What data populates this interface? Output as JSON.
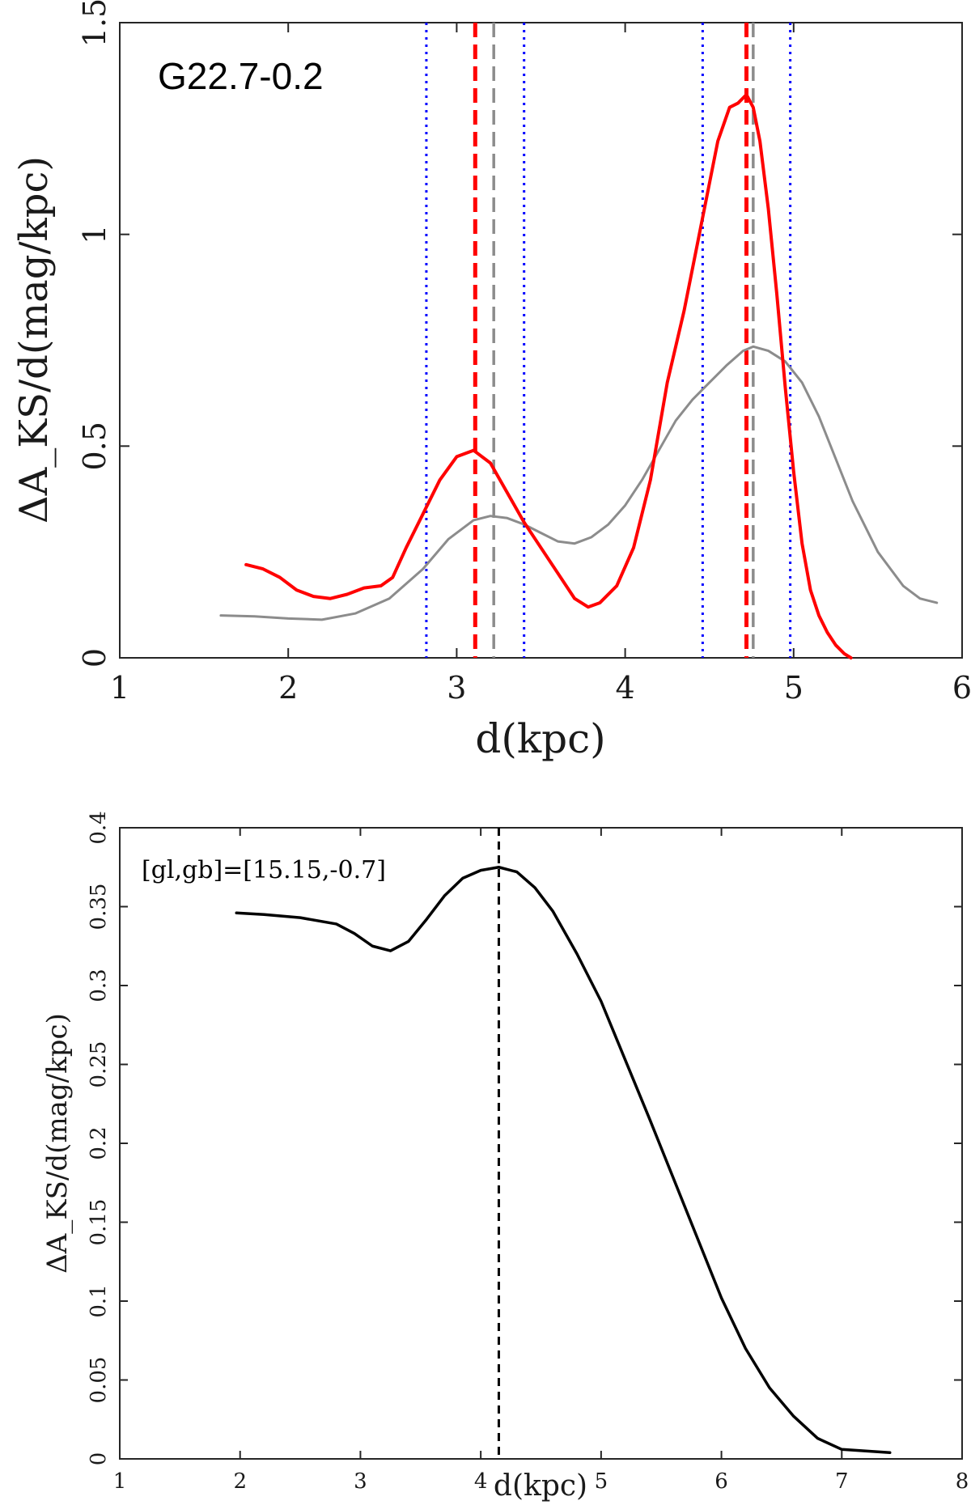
{
  "chart_data": [
    {
      "type": "line",
      "title": "",
      "annotation": "G22.7-0.2",
      "xlabel": "d(kpc)",
      "ylabel": "ΔA_KS/d(mag/kpc)",
      "xlim": [
        1,
        6
      ],
      "ylim": [
        0,
        1.5
      ],
      "xticks": [
        1,
        2,
        3,
        4,
        5,
        6
      ],
      "xtick_labels": [
        "1",
        "2",
        "3",
        "4",
        "5",
        "6"
      ],
      "yticks": [
        0,
        0.5,
        1,
        1.5
      ],
      "ytick_labels": [
        "0",
        "0.5",
        "1",
        "1.5"
      ],
      "grid": false,
      "series": [
        {
          "name": "red",
          "color": "#ff0000",
          "x": [
            1.75,
            1.85,
            1.95,
            2.05,
            2.15,
            2.25,
            2.35,
            2.45,
            2.55,
            2.62,
            2.7,
            2.8,
            2.9,
            3.0,
            3.1,
            3.2,
            3.3,
            3.4,
            3.5,
            3.6,
            3.7,
            3.78,
            3.85,
            3.95,
            4.05,
            4.15,
            4.25,
            4.35,
            4.45,
            4.55,
            4.62,
            4.67,
            4.72,
            4.76,
            4.8,
            4.85,
            4.9,
            4.95,
            5.0,
            5.05,
            5.1,
            5.15,
            5.2,
            5.25,
            5.3,
            5.34
          ],
          "y": [
            0.22,
            0.21,
            0.19,
            0.16,
            0.145,
            0.14,
            0.15,
            0.165,
            0.17,
            0.19,
            0.26,
            0.34,
            0.42,
            0.475,
            0.49,
            0.46,
            0.39,
            0.32,
            0.26,
            0.2,
            0.14,
            0.12,
            0.13,
            0.17,
            0.26,
            0.42,
            0.65,
            0.82,
            1.02,
            1.22,
            1.3,
            1.31,
            1.33,
            1.3,
            1.22,
            1.06,
            0.86,
            0.64,
            0.44,
            0.27,
            0.16,
            0.1,
            0.06,
            0.03,
            0.01,
            0.0
          ]
        },
        {
          "name": "gray",
          "color": "#8c8c8c",
          "x": [
            1.6,
            1.8,
            2.0,
            2.2,
            2.4,
            2.6,
            2.8,
            2.95,
            3.1,
            3.2,
            3.3,
            3.4,
            3.5,
            3.6,
            3.7,
            3.8,
            3.9,
            4.0,
            4.1,
            4.2,
            4.3,
            4.4,
            4.5,
            4.6,
            4.7,
            4.76,
            4.85,
            4.95,
            5.05,
            5.15,
            5.25,
            5.35,
            5.5,
            5.65,
            5.75,
            5.85
          ],
          "y": [
            0.1,
            0.098,
            0.093,
            0.09,
            0.105,
            0.14,
            0.21,
            0.28,
            0.325,
            0.335,
            0.33,
            0.315,
            0.295,
            0.275,
            0.27,
            0.285,
            0.315,
            0.36,
            0.42,
            0.49,
            0.56,
            0.61,
            0.65,
            0.69,
            0.725,
            0.735,
            0.725,
            0.7,
            0.65,
            0.57,
            0.47,
            0.37,
            0.25,
            0.17,
            0.14,
            0.13
          ]
        }
      ],
      "vlines": [
        {
          "x": 3.11,
          "color": "#ff0000",
          "style": "dashed"
        },
        {
          "x": 3.22,
          "color": "#8c8c8c",
          "style": "dashed"
        },
        {
          "x": 2.82,
          "color": "#0000ff",
          "style": "dotted"
        },
        {
          "x": 3.4,
          "color": "#0000ff",
          "style": "dotted"
        },
        {
          "x": 4.72,
          "color": "#ff0000",
          "style": "dashed"
        },
        {
          "x": 4.76,
          "color": "#8c8c8c",
          "style": "dashed"
        },
        {
          "x": 4.46,
          "color": "#0000ff",
          "style": "dotted"
        },
        {
          "x": 4.98,
          "color": "#0000ff",
          "style": "dotted"
        }
      ]
    },
    {
      "type": "line",
      "title": "",
      "annotation": "[gl,gb]=[15.15,-0.7]",
      "xlabel": "d(kpc)",
      "ylabel": "ΔA_KS/d(mag/kpc)",
      "xlim": [
        1,
        8
      ],
      "ylim": [
        0,
        0.4
      ],
      "xticks": [
        1,
        2,
        3,
        4,
        5,
        6,
        7,
        8
      ],
      "xtick_labels": [
        "1",
        "2",
        "3",
        "4",
        "5",
        "6",
        "7",
        "8"
      ],
      "yticks": [
        0,
        0.05,
        0.1,
        0.15,
        0.2,
        0.25,
        0.3,
        0.35,
        0.4
      ],
      "ytick_labels": [
        "0",
        "0.05",
        "0.1",
        "0.15",
        "0.2",
        "0.25",
        "0.3",
        "0.35",
        "0.4"
      ],
      "grid": false,
      "series": [
        {
          "name": "black",
          "color": "#000000",
          "x": [
            1.97,
            2.2,
            2.5,
            2.8,
            2.95,
            3.1,
            3.25,
            3.4,
            3.55,
            3.7,
            3.85,
            4.0,
            4.15,
            4.3,
            4.45,
            4.6,
            4.8,
            5.0,
            5.2,
            5.4,
            5.6,
            5.8,
            6.0,
            6.2,
            6.4,
            6.6,
            6.8,
            7.0,
            7.2,
            7.4
          ],
          "y": [
            0.346,
            0.345,
            0.343,
            0.339,
            0.333,
            0.325,
            0.322,
            0.328,
            0.342,
            0.357,
            0.368,
            0.373,
            0.375,
            0.372,
            0.362,
            0.347,
            0.32,
            0.29,
            0.253,
            0.216,
            0.178,
            0.14,
            0.102,
            0.07,
            0.045,
            0.027,
            0.013,
            0.006,
            0.005,
            0.004
          ]
        }
      ],
      "vlines": [
        {
          "x": 4.15,
          "color": "#000000",
          "style": "dashed"
        }
      ]
    }
  ]
}
